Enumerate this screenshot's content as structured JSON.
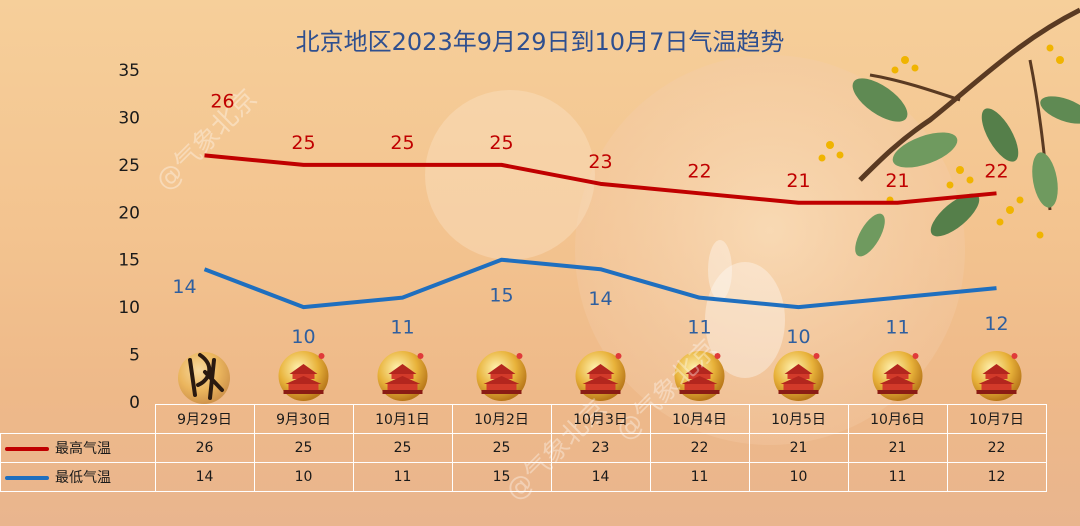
{
  "chart_data": {
    "type": "line",
    "title": "北京地区2023年9月29日到10月7日气温趋势",
    "categories": [
      "9月29日",
      "9月30日",
      "10月1日",
      "10月2日",
      "10月3日",
      "10月4日",
      "10月5日",
      "10月6日",
      "10月7日"
    ],
    "series": [
      {
        "name": "最高气温",
        "values": [
          26,
          25,
          25,
          25,
          23,
          22,
          21,
          21,
          22
        ],
        "color": "#c00000"
      },
      {
        "name": "最低气温",
        "values": [
          14,
          10,
          11,
          15,
          14,
          11,
          10,
          11,
          12
        ],
        "color": "#1f6fbf"
      }
    ],
    "yticks": [
      "0",
      "5",
      "10",
      "15",
      "20",
      "25",
      "30",
      "35"
    ],
    "ylim": [
      0,
      35
    ],
    "grid": false,
    "legend": "data-table"
  },
  "watermarks": [
    "@气象北京",
    "@气象北京",
    "@气象北京"
  ],
  "colors": {
    "title": "#2f4f8f",
    "background": "#f3c38f"
  }
}
